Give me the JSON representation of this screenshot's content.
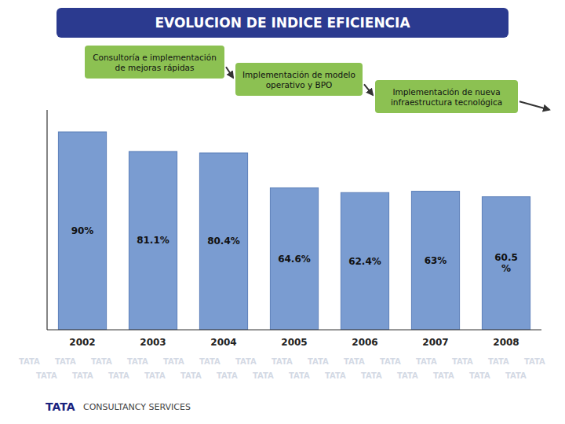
{
  "chart_data": {
    "type": "bar",
    "title": "EVOLUCION DE INDICE EFICIENCIA",
    "categories": [
      "2002",
      "2003",
      "2004",
      "2005",
      "2006",
      "2007",
      "2008"
    ],
    "values": [
      90.0,
      81.1,
      80.4,
      64.6,
      62.4,
      63.0,
      60.5
    ],
    "value_labels": [
      "90%",
      "81.1%",
      "80.4%",
      "64.6%",
      "62.4%",
      "63%",
      "60.5\n%"
    ],
    "data_labels": true,
    "ylim": [
      0,
      100
    ],
    "tick_labels": "x",
    "grid": false,
    "annotations": [
      "Consultoría e implementación\nde mejoras rápidas",
      "Implementación de modelo\noperativo y BPO",
      "Implementación de nueva\ninfraestructura tecnológica"
    ],
    "watermark": "TATA",
    "logo": "TATA",
    "logo_text": "CONSULTANCY SERVICES"
  }
}
